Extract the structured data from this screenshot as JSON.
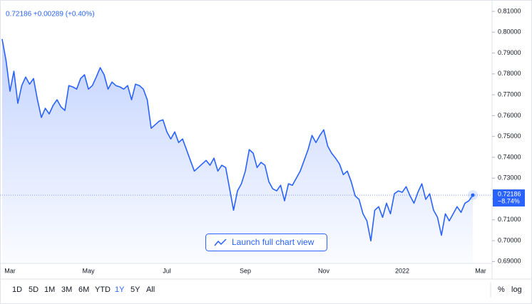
{
  "chart_data": {
    "type": "area",
    "header": "0.72186 +0.00289 (+0.40%)",
    "color": "#2962ff",
    "categories": [
      null,
      null,
      "Mar",
      null,
      null,
      null,
      null,
      null,
      null,
      null,
      null,
      null,
      null,
      null,
      null,
      null,
      null,
      null,
      null,
      null,
      null,
      null,
      "May",
      null,
      null,
      null,
      null,
      null,
      null,
      null,
      null,
      null,
      null,
      null,
      null,
      null,
      null,
      null,
      null,
      null,
      null,
      null,
      "Jul",
      null,
      null,
      null,
      null,
      null,
      null,
      null,
      null,
      null,
      null,
      null,
      null,
      null,
      null,
      null,
      null,
      null,
      null,
      null,
      "Sep",
      null,
      null,
      null,
      null,
      null,
      null,
      null,
      null,
      null,
      null,
      null,
      null,
      null,
      null,
      null,
      null,
      null,
      null,
      null,
      "Nov",
      null,
      null,
      null,
      null,
      null,
      null,
      null,
      null,
      null,
      null,
      null,
      null,
      null,
      null,
      null,
      null,
      null,
      null,
      null,
      "2022",
      null,
      null,
      null,
      null,
      null,
      null,
      null,
      null,
      null,
      null,
      null,
      null,
      null,
      null,
      null,
      null,
      null,
      null,
      null,
      "Mar"
    ],
    "values": [
      0.7967,
      0.7864,
      0.7717,
      0.7813,
      0.7659,
      0.7744,
      0.7785,
      0.7751,
      0.7778,
      0.7676,
      0.7591,
      0.7635,
      0.7608,
      0.7649,
      0.7676,
      0.7642,
      0.7625,
      0.7744,
      0.7738,
      0.7727,
      0.7778,
      0.7796,
      0.7727,
      0.7744,
      0.7785,
      0.783,
      0.7796,
      0.7727,
      0.7761,
      0.7744,
      0.7738,
      0.7727,
      0.7744,
      0.7676,
      0.7751,
      0.7744,
      0.7727,
      0.7676,
      0.7539,
      0.7556,
      0.7573,
      0.758,
      0.7522,
      0.7488,
      0.7522,
      0.7471,
      0.7488,
      0.7437,
      0.7385,
      0.7334,
      0.7351,
      0.7368,
      0.7385,
      0.7362,
      0.7396,
      0.7334,
      0.7362,
      0.7351,
      0.7249,
      0.7146,
      0.7239,
      0.7273,
      0.7334,
      0.7437,
      0.742,
      0.7351,
      0.7376,
      0.7362,
      0.7283,
      0.7249,
      0.7239,
      0.7266,
      0.7191,
      0.7273,
      0.7266,
      0.73,
      0.7334,
      0.7385,
      0.7437,
      0.7505,
      0.7471,
      0.7505,
      0.7532,
      0.7454,
      0.742,
      0.7396,
      0.7368,
      0.7317,
      0.7334,
      0.7283,
      0.7215,
      0.7198,
      0.7129,
      0.7095,
      0.6999,
      0.7146,
      0.7163,
      0.7112,
      0.718,
      0.7129,
      0.7225,
      0.7239,
      0.7232,
      0.7259,
      0.7215,
      0.718,
      0.7232,
      0.7273,
      0.7198,
      0.7225,
      0.7146,
      0.7112,
      0.7026,
      0.7129,
      0.7095,
      0.7129,
      0.7163,
      0.7136,
      0.718,
      0.7191,
      0.72186,
      null,
      null
    ],
    "ylim": [
      0.6891,
      0.8134
    ],
    "yticks": [
      {
        "value": 0.81,
        "label": "0.81000"
      },
      {
        "value": 0.8,
        "label": "0.80000"
      },
      {
        "value": 0.79,
        "label": "0.79000"
      },
      {
        "value": 0.78,
        "label": "0.78000"
      },
      {
        "value": 0.77,
        "label": "0.77000"
      },
      {
        "value": 0.76,
        "label": "0.76000"
      },
      {
        "value": 0.75,
        "label": "0.75000"
      },
      {
        "value": 0.74,
        "label": "0.74000"
      },
      {
        "value": 0.73,
        "label": "0.73000"
      },
      {
        "value": 0.72,
        "label": "0.72000"
      },
      {
        "value": 0.71,
        "label": "0.71000"
      },
      {
        "value": 0.7,
        "label": "0.70000"
      },
      {
        "value": 0.69,
        "label": "0.69000"
      }
    ],
    "last_change": "−8.74%",
    "button": "Launch full chart view"
  },
  "toolbar": {
    "ranges": [
      "1D",
      "5D",
      "1M",
      "3M",
      "6M",
      "YTD",
      "1Y",
      "5Y",
      "All"
    ],
    "active_range": "1Y",
    "options": [
      "%",
      "log"
    ]
  }
}
